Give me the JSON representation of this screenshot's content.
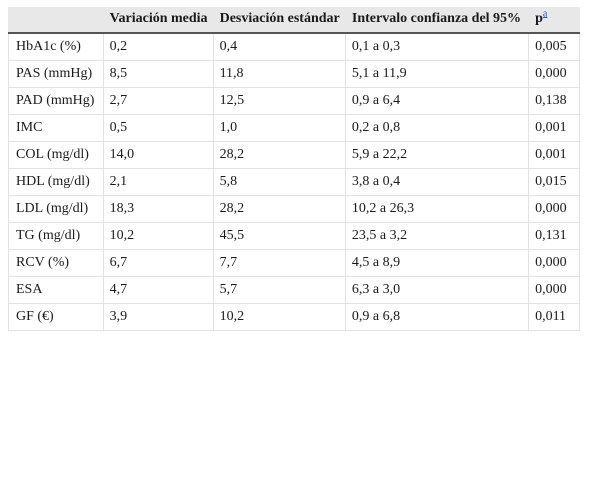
{
  "table": {
    "headers": [
      "",
      "Variación media",
      "Desviación estándar",
      "Intervalo confianza del 95%",
      "p"
    ],
    "p_footnote": "a",
    "rows": [
      [
        "HbA1c (%)",
        "0,2",
        "0,4",
        "0,1 a 0,3",
        "0,005"
      ],
      [
        "PAS (mmHg)",
        "8,5",
        "11,8",
        "5,1 a 11,9",
        "0,000"
      ],
      [
        "PAD (mmHg)",
        "2,7",
        "12,5",
        "0,9 a 6,4",
        "0,138"
      ],
      [
        "IMC",
        "0,5",
        "1,0",
        "0,2 a 0,8",
        "0,001"
      ],
      [
        "COL (mg/dl)",
        "14,0",
        "28,2",
        "5,9 a 22,2",
        "0,001"
      ],
      [
        "HDL (mg/dl)",
        "2,1",
        "5,8",
        "3,8 a 0,4",
        "0,015"
      ],
      [
        "LDL (mg/dl)",
        "18,3",
        "28,2",
        "10,2 a 26,3",
        "0,000"
      ],
      [
        "TG (mg/dl)",
        "10,2",
        "45,5",
        "23,5 a 3,2",
        "0,131"
      ],
      [
        "RCV (%)",
        "6,7",
        "7,7",
        "4,5 a 8,9",
        "0,000"
      ],
      [
        "ESA",
        "4,7",
        "5,7",
        "6,3 a 3,0",
        "0,000"
      ],
      [
        "GF (€)",
        "3,9",
        "10,2",
        "0,9 a 6,8",
        "0,011"
      ]
    ]
  }
}
